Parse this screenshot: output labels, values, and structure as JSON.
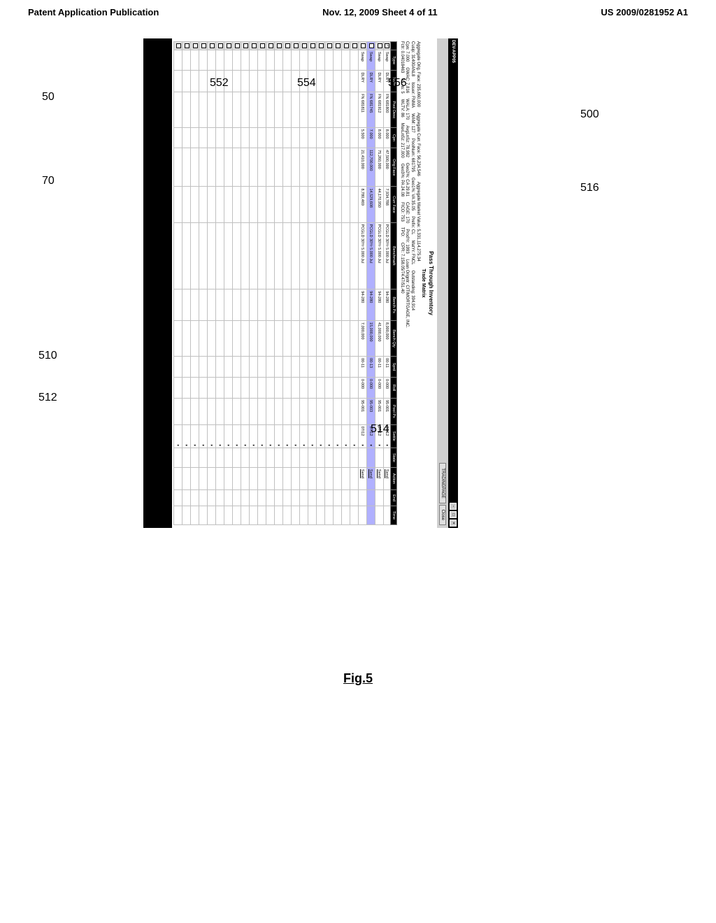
{
  "page_header": {
    "left": "Patent Application Publication",
    "center": "Nov. 12, 2009  Sheet 4 of 11",
    "right": "US 2009/0281952 A1"
  },
  "figure_caption": "Fig.5",
  "callouts": {
    "c50": "50",
    "c70": "70",
    "c500": "500",
    "c510": "510",
    "c512": "512",
    "c514": "514",
    "c516": "516",
    "c552": "552",
    "c554": "554",
    "c556": "556"
  },
  "window": {
    "title": "DEV-APP05",
    "tradingpage_btn": "TRADINGPAGE",
    "close_btn": "Close"
  },
  "section": {
    "pass_through": "Pass Through Inventory",
    "trade_matrix": "Trade Matrix"
  },
  "aggregate_orig": {
    "label": "Aggregate Orig. Face:",
    "value": "235,660,000",
    "curr_label": "Aggregate Curr. Face:",
    "curr_value": "56,234,546",
    "amv_label": "Aggregate Market Value:",
    "amv_value": "5,331,114,275.34"
  },
  "agg_details": {
    "cusip": {
      "label": "Cusip:",
      "value": "31400ANL8"
    },
    "issuer": {
      "label": "Issuer:",
      "value": "FNMA"
    },
    "wam": {
      "label": "WAM:",
      "value": "127"
    },
    "poolnum": {
      "label": "PoolNum:",
      "value": "681795"
    },
    "geo1": {
      "label": "Geo1%:",
      "value": "VA  35.05"
    },
    "prefix": {
      "label": "Prefix:",
      "value": "CL"
    },
    "matyr": {
      "label": "MatYr:",
      "value": "FNCL"
    },
    "outstanding": {
      "label": "Outstanding:",
      "value": "394,914"
    },
    "cpn": {
      "label": "Cpn:",
      "value": "7.000"
    },
    "gwac": {
      "label": "GWAC:",
      "value": "7.816"
    },
    "wala": {
      "label": "WALA:",
      "value": "170"
    },
    "avglnsz": {
      "label": "AvgLnSz:",
      "value": "78,982"
    },
    "geo2": {
      "label": "Geo2%:",
      "value": "CA  29.81"
    },
    "cage": {
      "label": "CAGE:",
      "value": "170"
    },
    "prodyr": {
      "label": "ProdYr:",
      "value": "1993"
    },
    "loan_orig": {
      "label": "Loan Origntr:",
      "value": "CITIMORTGAGE, INC."
    },
    "fctr": {
      "label": "Fctr:",
      "value": "0.04018463"
    },
    "numlns": {
      "label": "# Lns:",
      "value": "5"
    },
    "wltv": {
      "label": "WLTV:",
      "value": "86"
    },
    "maxlnsz": {
      "label": "MaxLnSz:",
      "value": "217,000"
    },
    "geo3": {
      "label": "Geo3%:",
      "value": "PA  24.08"
    },
    "fico": {
      "label": "FICO:",
      "value": "753"
    },
    "tpo": {
      "label": "TPO:"
    },
    "cpr": {
      "label": "CPR:",
      "value": "7.158.05/74.47/51.40"
    }
  },
  "table": {
    "columns": [
      "",
      "Type",
      "S/Dir",
      "Pool Desc",
      "Cpn",
      "Orig Face",
      "Curr Face",
      "Benchmark",
      "Bench Px",
      "Bench Qty",
      "Sprd",
      "Roll",
      "Pool Px",
      "Settle",
      "State",
      "Action",
      "End",
      "Time"
    ],
    "rows": [
      {
        "checked": true,
        "type": "Swap",
        "sdir": "DLRY",
        "pool": "FN 681800",
        "cpn": "8.000",
        "origface": "47,500,000",
        "currface": "7,934,788",
        "benchmark": "PCGLD 30Yr 5.000 Jul",
        "benchpx": "94-280",
        "benchqty": "8,000,000",
        "sprd": "00-11",
        "roll": "0-000",
        "poolpx": "95-001",
        "settle": "07/12",
        "state": "",
        "action": "Send",
        "end": "",
        "time": "",
        "highlight": false
      },
      {
        "checked": false,
        "type": "Swap",
        "sdir": "DLRY",
        "pool": "FN 681912",
        "cpn": "8.000",
        "origface": "75,260,000",
        "currface": "44,170,950",
        "benchmark": "PCGLD 30Yr 5.000 Jul",
        "benchpx": "94-280",
        "benchqty": "41,000,000",
        "sprd": "00-11",
        "roll": "0-000",
        "poolpx": "95-001",
        "settle": "07/12",
        "state": "",
        "action": "Send",
        "end": "",
        "time": "",
        "highlight": false
      },
      {
        "checked": false,
        "type": "Swap",
        "sdir": "DLRY",
        "pool": "FN 681745",
        "cpn": "7.000",
        "origface": "112,700,000",
        "currface": "14,529,608",
        "benchmark": "PCGLD 30Yr 5.000 Jul",
        "benchpx": "94-280",
        "benchqty": "15,000,000",
        "sprd": "00-13",
        "roll": "0-000",
        "poolpx": "95-003",
        "settle": "07/12",
        "state": "",
        "action": "Send",
        "end": "",
        "time": "",
        "highlight": true
      },
      {
        "checked": false,
        "type": "Swap",
        "sdir": "DLRY",
        "pool": "FN 681811",
        "cpn": "5.500",
        "origface": "21,410,000",
        "currface": "8,780,469",
        "benchmark": "PCGLD 30Yr 5.000 Jul",
        "benchpx": "94-280",
        "benchqty": "7,000,000",
        "sprd": "00-11",
        "roll": "0-000",
        "poolpx": "95-001",
        "settle": "07/12",
        "state": "",
        "action": "Send",
        "end": "",
        "time": "",
        "highlight": false
      }
    ],
    "empty_rows": 22
  },
  "colors": {
    "window_bg": "#000000",
    "content_bg": "#ffffff",
    "header_bg": "#000000",
    "header_fg": "#ffffff",
    "alt_row": "#e0e0e0",
    "highlight_row": "#b0b0ff",
    "toolbar_bg": "#d0d0d0"
  }
}
